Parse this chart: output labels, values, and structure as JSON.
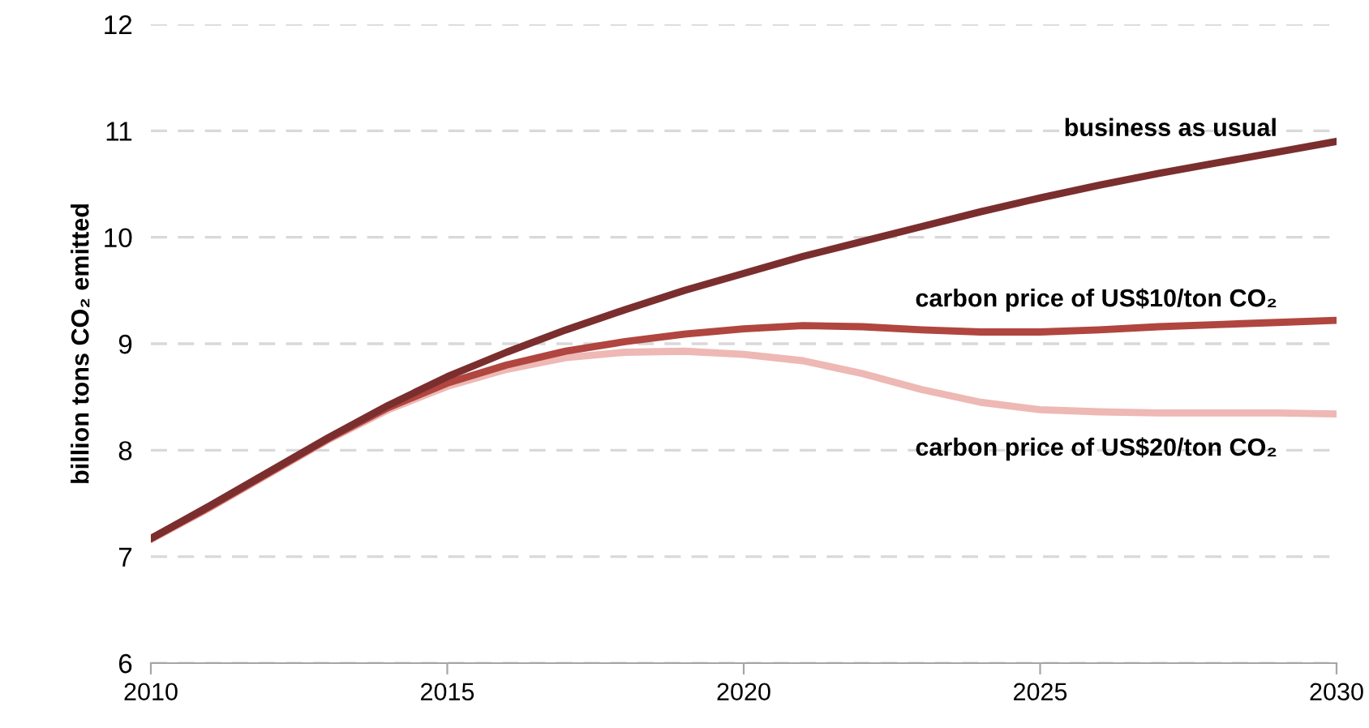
{
  "chart_data": {
    "type": "line",
    "ylabel": "billion tons CO₂ emitted",
    "x": [
      2010,
      2011,
      2012,
      2013,
      2014,
      2015,
      2016,
      2017,
      2018,
      2019,
      2020,
      2021,
      2022,
      2023,
      2024,
      2025,
      2026,
      2027,
      2028,
      2029,
      2030
    ],
    "series": [
      {
        "name": "business as usual",
        "color": "#7b2e2e",
        "values": [
          7.17,
          7.48,
          7.8,
          8.12,
          8.42,
          8.69,
          8.92,
          9.13,
          9.32,
          9.5,
          9.66,
          9.82,
          9.96,
          10.1,
          10.24,
          10.37,
          10.49,
          10.6,
          10.7,
          10.8,
          10.9
        ]
      },
      {
        "name": "carbon price of US$10/ton CO₂",
        "color": "#b0463f",
        "values": [
          7.17,
          7.47,
          7.79,
          8.11,
          8.4,
          8.63,
          8.8,
          8.93,
          9.02,
          9.09,
          9.14,
          9.17,
          9.16,
          9.13,
          9.11,
          9.11,
          9.13,
          9.16,
          9.18,
          9.2,
          9.22
        ]
      },
      {
        "name": "carbon price of US$20/ton CO₂",
        "color": "#eeb8b5",
        "values": [
          7.16,
          7.46,
          7.78,
          8.1,
          8.38,
          8.6,
          8.76,
          8.87,
          8.92,
          8.93,
          8.9,
          8.84,
          8.72,
          8.57,
          8.45,
          8.38,
          8.36,
          8.35,
          8.35,
          8.35,
          8.34
        ]
      }
    ],
    "xlim": [
      2010,
      2030
    ],
    "xticks": [
      2010,
      2015,
      2020,
      2025,
      2030
    ],
    "ylim": [
      6,
      12
    ],
    "yticks": [
      6,
      7,
      8,
      9,
      10,
      11,
      12
    ],
    "grid": "y",
    "legend": false,
    "marker": "none",
    "line_style": "solid"
  }
}
